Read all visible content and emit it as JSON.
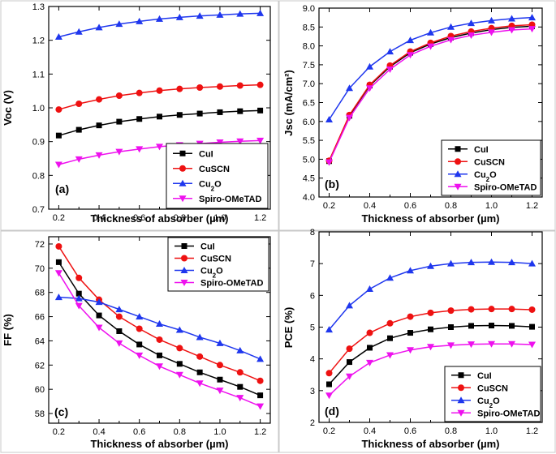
{
  "chart_data": [
    {
      "type": "line",
      "panel_label": "(a)",
      "xlabel": "Thickness of absorber (µm)",
      "ylabel": "Voc (V)",
      "xlim": [
        0.15,
        1.25
      ],
      "ylim": [
        0.7,
        1.3
      ],
      "xticks": [
        "0.2",
        "0.4",
        "0.6",
        "0.8",
        "1.0",
        "1.2"
      ],
      "yticks": [
        "0.7",
        "0.8",
        "0.9",
        "1.0",
        "1.1",
        "1.2",
        "1.3"
      ],
      "x": [
        0.2,
        0.3,
        0.4,
        0.5,
        0.6,
        0.7,
        0.8,
        0.9,
        1.0,
        1.1,
        1.2
      ],
      "series": [
        {
          "name": "CuI",
          "values": [
            0.918,
            0.935,
            0.948,
            0.959,
            0.967,
            0.974,
            0.979,
            0.983,
            0.987,
            0.99,
            0.992
          ]
        },
        {
          "name": "CuSCN",
          "values": [
            0.995,
            1.012,
            1.025,
            1.036,
            1.044,
            1.051,
            1.056,
            1.06,
            1.063,
            1.066,
            1.068
          ]
        },
        {
          "name": "Cu2O",
          "values": [
            1.21,
            1.225,
            1.238,
            1.248,
            1.256,
            1.263,
            1.268,
            1.272,
            1.275,
            1.278,
            1.28
          ]
        },
        {
          "name": "Spiro-OMeTAD",
          "values": [
            0.832,
            0.848,
            0.86,
            0.87,
            0.878,
            0.885,
            0.89,
            0.894,
            0.898,
            0.901,
            0.903
          ]
        }
      ]
    },
    {
      "type": "line",
      "panel_label": "(b)",
      "xlabel": "Thickness of absorber (µm)",
      "ylabel": "Jsc (mA/cm²)",
      "xlim": [
        0.15,
        1.25
      ],
      "ylim": [
        4.0,
        9.0
      ],
      "xticks": [
        "0.2",
        "0.4",
        "0.6",
        "0.8",
        "1.0",
        "1.2"
      ],
      "yticks": [
        "4.0",
        "4.5",
        "5.0",
        "5.5",
        "6.0",
        "6.5",
        "7.0",
        "7.5",
        "8.0",
        "8.5",
        "9.0"
      ],
      "x": [
        0.2,
        0.3,
        0.4,
        0.5,
        0.6,
        0.7,
        0.8,
        0.9,
        1.0,
        1.1,
        1.2
      ],
      "series": [
        {
          "name": "CuI",
          "values": [
            4.95,
            6.15,
            6.95,
            7.45,
            7.82,
            8.05,
            8.22,
            8.34,
            8.43,
            8.49,
            8.52
          ]
        },
        {
          "name": "CuSCN",
          "values": [
            4.96,
            6.17,
            6.97,
            7.48,
            7.85,
            8.08,
            8.26,
            8.38,
            8.47,
            8.53,
            8.56
          ]
        },
        {
          "name": "Cu2O",
          "values": [
            6.05,
            6.88,
            7.45,
            7.85,
            8.15,
            8.35,
            8.5,
            8.6,
            8.67,
            8.72,
            8.75
          ]
        },
        {
          "name": "Spiro-OMeTAD",
          "values": [
            4.92,
            6.1,
            6.88,
            7.38,
            7.76,
            7.99,
            8.16,
            8.28,
            8.36,
            8.42,
            8.45
          ]
        }
      ]
    },
    {
      "type": "line",
      "panel_label": "(c)",
      "xlabel": "Thickness of absorber (µm)",
      "ylabel": "FF (%)",
      "xlim": [
        0.15,
        1.25
      ],
      "ylim": [
        57.2,
        72.6
      ],
      "xticks": [
        "0.2",
        "0.4",
        "0.6",
        "0.8",
        "1.0",
        "1.2"
      ],
      "yticks": [
        "58",
        "60",
        "62",
        "64",
        "66",
        "68",
        "70",
        "72"
      ],
      "x": [
        0.2,
        0.3,
        0.4,
        0.5,
        0.6,
        0.7,
        0.8,
        0.9,
        1.0,
        1.1,
        1.2
      ],
      "series": [
        {
          "name": "CuI",
          "values": [
            70.5,
            67.9,
            66.1,
            64.8,
            63.7,
            62.8,
            62.1,
            61.4,
            60.8,
            60.2,
            59.5
          ]
        },
        {
          "name": "CuSCN",
          "values": [
            71.8,
            69.2,
            67.4,
            66.0,
            65.0,
            64.1,
            63.4,
            62.7,
            62.0,
            61.4,
            60.7
          ]
        },
        {
          "name": "Cu2O",
          "values": [
            67.6,
            67.5,
            67.2,
            66.6,
            66.0,
            65.4,
            64.9,
            64.3,
            63.8,
            63.2,
            62.5
          ]
        },
        {
          "name": "Spiro-OMeTAD",
          "values": [
            69.6,
            66.9,
            65.1,
            63.8,
            62.8,
            61.9,
            61.2,
            60.5,
            59.9,
            59.3,
            58.6
          ]
        }
      ]
    },
    {
      "type": "line",
      "panel_label": "(d)",
      "xlabel": "Thickness of absorber (µm)",
      "ylabel": "PCE (%)",
      "xlim": [
        0.15,
        1.25
      ],
      "ylim": [
        2,
        8
      ],
      "xticks": [
        "0.2",
        "0.4",
        "0.6",
        "0.8",
        "1.0",
        "1.2"
      ],
      "yticks": [
        "2",
        "3",
        "4",
        "5",
        "6",
        "7",
        "8"
      ],
      "x": [
        0.2,
        0.3,
        0.4,
        0.5,
        0.6,
        0.7,
        0.8,
        0.9,
        1.0,
        1.1,
        1.2
      ],
      "series": [
        {
          "name": "CuI",
          "values": [
            3.2,
            3.9,
            4.35,
            4.65,
            4.82,
            4.93,
            5.0,
            5.04,
            5.05,
            5.04,
            5.01
          ]
        },
        {
          "name": "CuSCN",
          "values": [
            3.55,
            4.32,
            4.82,
            5.12,
            5.33,
            5.45,
            5.52,
            5.56,
            5.57,
            5.57,
            5.55
          ]
        },
        {
          "name": "Cu2O",
          "values": [
            4.92,
            5.68,
            6.2,
            6.55,
            6.78,
            6.92,
            7.0,
            7.04,
            7.05,
            7.04,
            7.0
          ]
        },
        {
          "name": "Spiro-OMeTAD",
          "values": [
            2.85,
            3.45,
            3.88,
            4.12,
            4.28,
            4.38,
            4.43,
            4.46,
            4.47,
            4.47,
            4.45
          ]
        }
      ]
    }
  ],
  "legend": {
    "entries": [
      {
        "name": "CuI",
        "label_main": "CuI",
        "label_sub": "",
        "label_tail": "",
        "color": "#000000",
        "marker": "square"
      },
      {
        "name": "CuSCN",
        "label_main": "CuSCN",
        "label_sub": "",
        "label_tail": "",
        "color": "#ee1111",
        "marker": "circle"
      },
      {
        "name": "Cu2O",
        "label_main": "Cu",
        "label_sub": "2",
        "label_tail": "O",
        "color": "#1f37ee",
        "marker": "triangle-up"
      },
      {
        "name": "Spiro-OMeTAD",
        "label_main": "Spiro-OMeTAD",
        "label_sub": "",
        "label_tail": "",
        "color": "#ee11ee",
        "marker": "triangle-down"
      }
    ]
  }
}
